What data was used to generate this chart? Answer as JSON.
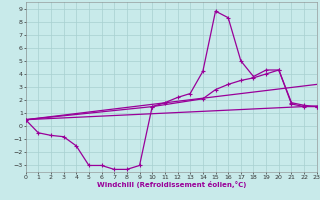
{
  "bg_color": "#c8eaea",
  "grid_color": "#a8d0d0",
  "line_color": "#990099",
  "xlabel": "Windchill (Refroidissement éolien,°C)",
  "xlim": [
    0,
    23
  ],
  "ylim": [
    -3.5,
    9.5
  ],
  "xticks": [
    0,
    1,
    2,
    3,
    4,
    5,
    6,
    7,
    8,
    9,
    10,
    11,
    12,
    13,
    14,
    15,
    16,
    17,
    18,
    19,
    20,
    21,
    22,
    23
  ],
  "yticks": [
    -3,
    -2,
    -1,
    0,
    1,
    2,
    3,
    4,
    5,
    6,
    7,
    8,
    9
  ],
  "series": [
    {
      "x": [
        0,
        1,
        2,
        3,
        4,
        5,
        6,
        7,
        8,
        9,
        10,
        11,
        12,
        13,
        14,
        15,
        16,
        17,
        18,
        19,
        20,
        21,
        22,
        23
      ],
      "y": [
        0.5,
        -0.5,
        -0.7,
        -0.8,
        -1.5,
        -3.0,
        -3.0,
        -3.3,
        -3.3,
        -3.0,
        1.5,
        1.8,
        2.2,
        2.5,
        4.2,
        8.8,
        8.3,
        5.0,
        3.8,
        4.3,
        4.3,
        1.7,
        1.5,
        1.5
      ],
      "marker": true,
      "lw": 0.9
    },
    {
      "x": [
        0,
        10,
        14,
        15,
        16,
        17,
        18,
        19,
        20,
        21,
        22,
        23
      ],
      "y": [
        0.5,
        1.5,
        2.1,
        2.8,
        3.2,
        3.5,
        3.7,
        4.0,
        4.3,
        1.8,
        1.6,
        1.5
      ],
      "marker": true,
      "lw": 0.9
    },
    {
      "x": [
        0,
        23
      ],
      "y": [
        0.5,
        3.2
      ],
      "marker": false,
      "lw": 0.9
    },
    {
      "x": [
        0,
        23
      ],
      "y": [
        0.5,
        1.55
      ],
      "marker": false,
      "lw": 0.9
    }
  ]
}
